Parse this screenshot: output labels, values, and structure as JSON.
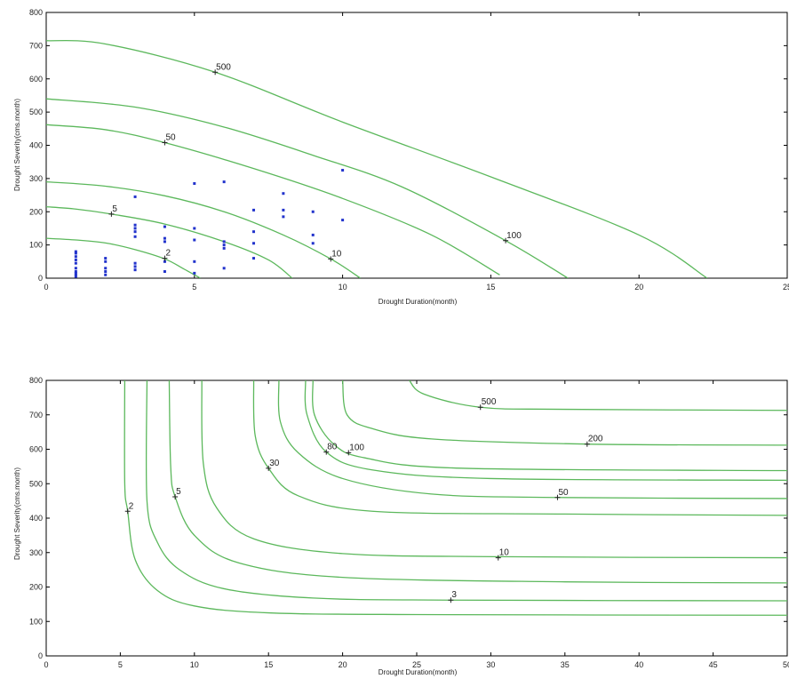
{
  "chart_data": [
    {
      "type": "line",
      "xlabel": "Drought Duration(month)",
      "ylabel": "Drought Severity(cms.month)",
      "xlim": [
        0,
        25
      ],
      "ylim": [
        0,
        800
      ],
      "xticks": [
        0,
        5,
        10,
        15,
        20,
        25
      ],
      "yticks": [
        0,
        100,
        200,
        300,
        400,
        500,
        600,
        700,
        800
      ],
      "grid": false,
      "point_color": "#2233cc",
      "contour_color": "#5cb85c",
      "contours": [
        {
          "label": "2",
          "label_at": [
            4,
            60
          ],
          "points": [
            [
              0,
              120
            ],
            [
              1,
              115
            ],
            [
              2,
              106
            ],
            [
              3,
              86
            ],
            [
              4,
              58
            ],
            [
              4.6,
              30
            ],
            [
              5.2,
              0
            ]
          ]
        },
        {
          "label": "5",
          "label_at": [
            2.2,
            193
          ],
          "points": [
            [
              0,
              215
            ],
            [
              1,
              208
            ],
            [
              2.2,
              193
            ],
            [
              4,
              163
            ],
            [
              6,
              110
            ],
            [
              7.5,
              55
            ],
            [
              8.3,
              0
            ]
          ]
        },
        {
          "label": "10",
          "label_at": [
            9.6,
            58
          ],
          "points": [
            [
              0,
              290
            ],
            [
              2,
              277
            ],
            [
              4,
              248
            ],
            [
              6,
              200
            ],
            [
              8,
              130
            ],
            [
              9.6,
              58
            ],
            [
              10.6,
              0
            ]
          ]
        },
        {
          "label": "50",
          "label_at": [
            4,
            408
          ],
          "points": [
            [
              0,
              462
            ],
            [
              2,
              447
            ],
            [
              4,
              408
            ],
            [
              7,
              330
            ],
            [
              10,
              240
            ],
            [
              13,
              130
            ],
            [
              15.3,
              10
            ]
          ]
        },
        {
          "label": "100",
          "label_at": [
            15.5,
            113
          ],
          "points": [
            [
              0,
              540
            ],
            [
              3,
              515
            ],
            [
              6,
              455
            ],
            [
              9,
              370
            ],
            [
              12,
              275
            ],
            [
              15.5,
              113
            ],
            [
              17.6,
              0
            ]
          ]
        },
        {
          "label": "500",
          "label_at": [
            5.7,
            620
          ],
          "points": [
            [
              0,
              715
            ],
            [
              2,
              705
            ],
            [
              5.7,
              620
            ],
            [
              10,
              470
            ],
            [
              15,
              305
            ],
            [
              20,
              130
            ],
            [
              22.3,
              0
            ]
          ]
        }
      ],
      "points": [
        [
          1,
          5
        ],
        [
          1,
          10
        ],
        [
          1,
          15
        ],
        [
          1,
          20
        ],
        [
          1,
          30
        ],
        [
          1,
          45
        ],
        [
          1,
          55
        ],
        [
          1,
          65
        ],
        [
          1,
          75
        ],
        [
          1,
          80
        ],
        [
          2,
          10
        ],
        [
          2,
          20
        ],
        [
          2,
          30
        ],
        [
          2,
          50
        ],
        [
          2,
          60
        ],
        [
          3,
          25
        ],
        [
          3,
          35
        ],
        [
          3,
          45
        ],
        [
          3,
          125
        ],
        [
          3,
          140
        ],
        [
          3,
          150
        ],
        [
          3,
          160
        ],
        [
          3,
          245
        ],
        [
          4,
          20
        ],
        [
          4,
          50
        ],
        [
          4,
          110
        ],
        [
          4,
          120
        ],
        [
          4,
          155
        ],
        [
          5,
          15
        ],
        [
          5,
          50
        ],
        [
          5,
          115
        ],
        [
          5,
          150
        ],
        [
          5,
          285
        ],
        [
          6,
          30
        ],
        [
          6,
          90
        ],
        [
          6,
          100
        ],
        [
          6,
          110
        ],
        [
          6,
          290
        ],
        [
          7,
          60
        ],
        [
          7,
          105
        ],
        [
          7,
          140
        ],
        [
          7,
          205
        ],
        [
          8,
          185
        ],
        [
          8,
          205
        ],
        [
          8,
          255
        ],
        [
          9,
          105
        ],
        [
          9,
          130
        ],
        [
          9,
          200
        ],
        [
          10,
          175
        ],
        [
          10,
          325
        ]
      ]
    },
    {
      "type": "line",
      "xlabel": "Drought Duration(month)",
      "ylabel": "Drought Severity(cms.month)",
      "xlim": [
        0,
        50
      ],
      "ylim": [
        0,
        800
      ],
      "xticks": [
        0,
        5,
        10,
        15,
        20,
        25,
        30,
        35,
        40,
        45,
        50
      ],
      "yticks": [
        0,
        100,
        200,
        300,
        400,
        500,
        600,
        700,
        800
      ],
      "grid": false,
      "contour_color": "#5cb85c",
      "contours": [
        {
          "label": "2",
          "label_at": [
            5.5,
            420
          ],
          "points": [
            [
              5.3,
              800
            ],
            [
              5.3,
              500
            ],
            [
              5.5,
              420
            ],
            [
              6,
              280
            ],
            [
              7.5,
              190
            ],
            [
              10,
              145
            ],
            [
              15,
              125
            ],
            [
              25,
              120
            ],
            [
              50,
              118
            ]
          ]
        },
        {
          "label": "3",
          "label_at": [
            27.3,
            162
          ],
          "points": [
            [
              6.8,
              800
            ],
            [
              6.8,
              450
            ],
            [
              7.5,
              330
            ],
            [
              9,
              250
            ],
            [
              12,
              195
            ],
            [
              18,
              168
            ],
            [
              27.3,
              162
            ],
            [
              50,
              160
            ]
          ]
        },
        {
          "label": "5",
          "label_at": [
            8.7,
            462
          ],
          "points": [
            [
              8.3,
              800
            ],
            [
              8.4,
              550
            ],
            [
              8.7,
              462
            ],
            [
              10,
              350
            ],
            [
              13,
              270
            ],
            [
              20,
              228
            ],
            [
              35,
              215
            ],
            [
              50,
              212
            ]
          ]
        },
        {
          "label": "10",
          "label_at": [
            30.5,
            285
          ],
          "points": [
            [
              10.5,
              800
            ],
            [
              10.6,
              560
            ],
            [
              11.5,
              430
            ],
            [
              14,
              340
            ],
            [
              20,
              297
            ],
            [
              30.5,
              288
            ],
            [
              50,
              285
            ]
          ]
        },
        {
          "label": "30",
          "label_at": [
            15,
            545
          ],
          "points": [
            [
              14,
              800
            ],
            [
              14.1,
              640
            ],
            [
              15,
              545
            ],
            [
              17,
              465
            ],
            [
              22,
              420
            ],
            [
              34.5,
              412
            ],
            [
              50,
              408
            ]
          ]
        },
        {
          "label": "50",
          "label_at": [
            34.5,
            460
          ],
          "points": [
            [
              15.7,
              800
            ],
            [
              15.8,
              680
            ],
            [
              17,
              590
            ],
            [
              20,
              515
            ],
            [
              26,
              470
            ],
            [
              34.5,
              460
            ],
            [
              50,
              457
            ]
          ]
        },
        {
          "label": "80",
          "label_at": [
            18.9,
            592
          ],
          "points": [
            [
              17.5,
              800
            ],
            [
              17.6,
              700
            ],
            [
              18.9,
              592
            ],
            [
              22,
              540
            ],
            [
              30,
              515
            ],
            [
              50,
              510
            ]
          ]
        },
        {
          "label": "100",
          "label_at": [
            20.4,
            590
          ],
          "points": [
            [
              18,
              800
            ],
            [
              18.1,
              700
            ],
            [
              19.4,
              615
            ],
            [
              21.5,
              575
            ],
            [
              28,
              545
            ],
            [
              50,
              538
            ]
          ]
        },
        {
          "label": "200",
          "label_at": [
            36.5,
            615
          ],
          "points": [
            [
              20,
              800
            ],
            [
              20.3,
              700
            ],
            [
              22,
              660
            ],
            [
              26,
              630
            ],
            [
              36.5,
              615
            ],
            [
              50,
              612
            ]
          ]
        },
        {
          "label": "500",
          "label_at": [
            29.3,
            722
          ],
          "points": [
            [
              24.5,
              800
            ],
            [
              25.5,
              760
            ],
            [
              29.3,
              722
            ],
            [
              35,
              716
            ],
            [
              50,
              713
            ]
          ]
        }
      ]
    }
  ]
}
